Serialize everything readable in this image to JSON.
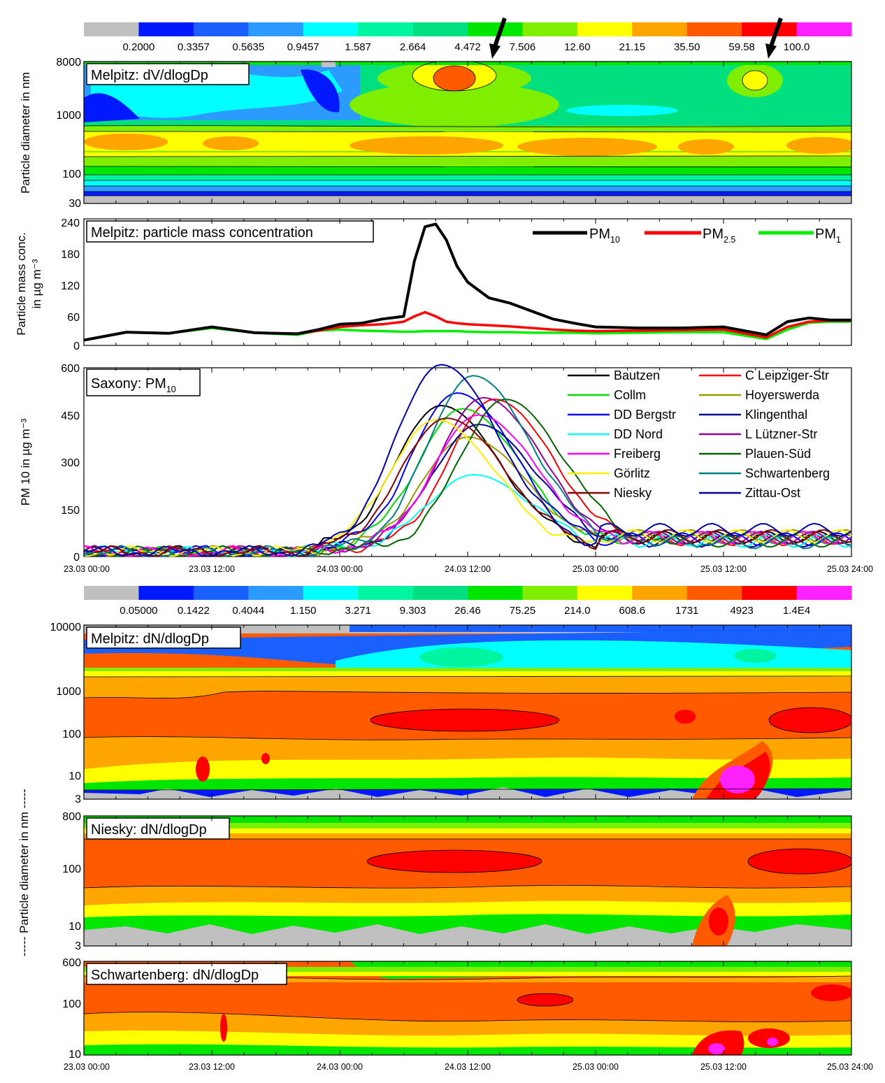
{
  "colorbars": [
    {
      "name": "dv",
      "colors": [
        "#c0c0c0",
        "#0019ff",
        "#1a5fff",
        "#2b9bff",
        "#00ffff",
        "#00f5a0",
        "#00e080",
        "#00e600",
        "#80ee00",
        "#ffff00",
        "#ffa500",
        "#ff5a00",
        "#ff0000",
        "#ff20ff"
      ],
      "labels": [
        "0.2000",
        "0.3357",
        "0.5635",
        "0.9457",
        "1.587",
        "2.664",
        "4.472",
        "7.506",
        "12.60",
        "21.15",
        "35.50",
        "59.58",
        "100.0"
      ]
    },
    {
      "name": "dn",
      "colors": [
        "#c0c0c0",
        "#0019ff",
        "#1a5fff",
        "#2b9bff",
        "#00ffff",
        "#00f5a0",
        "#00e080",
        "#00e600",
        "#80ee00",
        "#ffff00",
        "#ffa500",
        "#ff5a00",
        "#ff0000",
        "#ff20ff"
      ],
      "labels": [
        "0.05000",
        "0.1422",
        "0.4044",
        "1.150",
        "3.271",
        "9.303",
        "26.46",
        "75.25",
        "214.0",
        "608.6",
        "1731",
        "4923",
        "1.4E4"
      ]
    }
  ],
  "axis": {
    "x_ticks": [
      "23.03 00:00",
      "23.03 12:00",
      "24.03 00:00",
      "24.03 12:00",
      "25.03 00:00",
      "25.03 12:00",
      "25.03 24:00"
    ],
    "shared_ylabel": "----- Particle   diameter   in   nm -----"
  },
  "chart_data": [
    {
      "type": "heatmap",
      "title": "Melpitz: dV/dlogDp",
      "ylabel": "Particle diameter in nm",
      "yticks": [
        "30",
        "100",
        "1000",
        "8000"
      ],
      "log_y": true
    },
    {
      "type": "line",
      "title": "Melpitz: particle mass concentration",
      "ylabel_line1": "Particle mass conc.",
      "ylabel_line2": "in µg m⁻³",
      "ylim": [
        0,
        240
      ],
      "yticks": [
        "0",
        "60",
        "120",
        "180",
        "240"
      ],
      "x_hours": [
        0,
        4,
        8,
        12,
        16,
        20,
        22,
        24,
        26,
        28,
        30,
        31,
        32,
        33,
        34,
        35,
        36,
        38,
        40,
        42,
        44,
        46,
        48,
        52,
        56,
        60,
        64,
        66,
        68,
        70,
        72
      ],
      "series": [
        {
          "name": "PM10",
          "color": "#000000",
          "values": [
            10,
            25,
            23,
            35,
            24,
            22,
            30,
            40,
            42,
            50,
            55,
            160,
            225,
            230,
            200,
            150,
            120,
            90,
            80,
            65,
            50,
            42,
            35,
            33,
            33,
            35,
            20,
            45,
            52,
            48,
            48
          ]
        },
        {
          "name": "PM2.5",
          "color": "#ff0000",
          "values": [
            10,
            25,
            23,
            35,
            24,
            22,
            28,
            35,
            38,
            40,
            45,
            55,
            63,
            55,
            45,
            42,
            40,
            38,
            36,
            33,
            30,
            28,
            27,
            28,
            29,
            30,
            15,
            35,
            45,
            47,
            47
          ]
        },
        {
          "name": "PM1",
          "color": "#00ee00",
          "values": [
            10,
            25,
            23,
            33,
            24,
            20,
            28,
            30,
            28,
            27,
            26,
            26,
            27,
            27,
            27,
            27,
            26,
            25,
            25,
            24,
            24,
            24,
            23,
            24,
            25,
            25,
            12,
            30,
            43,
            45,
            45
          ]
        }
      ]
    },
    {
      "type": "line",
      "title": "Saxony: PM10",
      "ylabel": "PM 10 in µg m⁻³",
      "ylim": [
        0,
        600
      ],
      "yticks": [
        "0",
        "150",
        "300",
        "450",
        "600"
      ],
      "series": [
        {
          "name": "Bautzen",
          "color": "#000000",
          "peak_hour": 33.5,
          "peak": 480,
          "late": 60
        },
        {
          "name": "C Leipziger-Str",
          "color": "#ff0000",
          "peak_hour": 38.5,
          "peak": 500,
          "late": 55
        },
        {
          "name": "Collm",
          "color": "#00dd00",
          "peak_hour": 35.5,
          "peak": 470,
          "late": 60
        },
        {
          "name": "Hoyerswerda",
          "color": "#999900",
          "peak_hour": 36,
          "peak": 380,
          "late": 65
        },
        {
          "name": "DD Bergstr",
          "color": "#0000ff",
          "peak_hour": 35,
          "peak": 520,
          "late": 55
        },
        {
          "name": "Klingenthal",
          "color": "#000099",
          "peak_hour": 37,
          "peak": 420,
          "late": 50
        },
        {
          "name": "DD Nord",
          "color": "#00ffff",
          "peak_hour": 36.5,
          "peak": 260,
          "late": 50
        },
        {
          "name": "L Lützner-Str",
          "color": "#990099",
          "peak_hour": 37.5,
          "peak": 505,
          "late": 60
        },
        {
          "name": "Freiberg",
          "color": "#ff00ff",
          "peak_hour": 37,
          "peak": 450,
          "late": 60
        },
        {
          "name": "Plauen-Süd",
          "color": "#006600",
          "peak_hour": 39.5,
          "peak": 500,
          "late": 50
        },
        {
          "name": "Görlitz",
          "color": "#ffee00",
          "peak_hour": 33,
          "peak": 435,
          "late": 65
        },
        {
          "name": "Schwartenberg",
          "color": "#008080",
          "peak_hour": 36.5,
          "peak": 575,
          "late": 45
        },
        {
          "name": "Niesky",
          "color": "#880000",
          "peak_hour": 34,
          "peak": 440,
          "late": 65
        },
        {
          "name": "Zittau-Ost",
          "color": "#0000aa",
          "peak_hour": 33.5,
          "peak": 610,
          "late": 85
        }
      ]
    },
    {
      "type": "heatmap",
      "title": "Melpitz: dN/dlogDp",
      "yticks": [
        "3",
        "10",
        "100",
        "1000",
        "10000"
      ],
      "log_y": true
    },
    {
      "type": "heatmap",
      "title": "Niesky: dN/dlogDp",
      "yticks": [
        "3",
        "10",
        "100",
        "800"
      ],
      "log_y": true
    },
    {
      "type": "heatmap",
      "title": "Schwartenberg: dN/dlogDp",
      "yticks": [
        "10",
        "100",
        "600"
      ],
      "log_y": true
    }
  ]
}
